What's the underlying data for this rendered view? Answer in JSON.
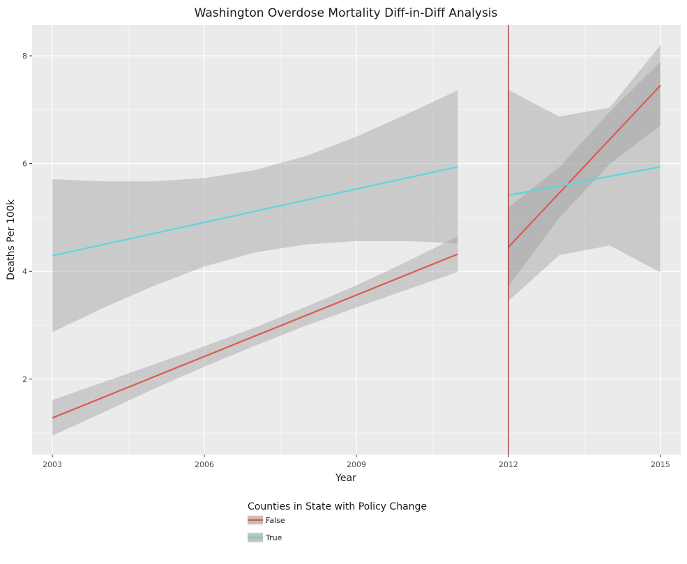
{
  "chart_data": {
    "type": "line",
    "title": "Washington Overdose Mortality Diff-in-Diff Analysis",
    "xlabel": "Year",
    "ylabel": "Deaths Per 100k",
    "xlim": [
      2002.6,
      2015.4
    ],
    "ylim": [
      0.6,
      8.57
    ],
    "x_ticks": [
      2003,
      2006,
      2009,
      2012,
      2015
    ],
    "y_ticks": [
      2,
      4,
      6,
      8
    ],
    "grid": true,
    "vline": {
      "x": 2012,
      "color": "#a00000"
    },
    "legend": {
      "title": "Counties in State with Policy Change",
      "placement": "bottom"
    },
    "series": [
      {
        "name": "False",
        "color": "#dc5a50",
        "segments": [
          {
            "x": [
              2003,
              2011
            ],
            "y": [
              1.28,
              4.32
            ],
            "band_x": [
              2003,
              2004,
              2005,
              2006,
              2007,
              2008,
              2009,
              2010,
              2011
            ],
            "band_lower": [
              0.95,
              1.38,
              1.82,
              2.23,
              2.62,
              2.99,
              3.33,
              3.66,
              3.99
            ],
            "band_upper": [
              1.61,
              1.94,
              2.27,
              2.61,
              2.96,
              3.34,
              3.74,
              4.18,
              4.65
            ]
          },
          {
            "x": [
              2012,
              2015
            ],
            "y": [
              4.45,
              7.45
            ],
            "band_x": [
              2012,
              2013,
              2014,
              2015
            ],
            "band_lower": [
              3.72,
              4.99,
              5.99,
              6.71
            ],
            "band_upper": [
              5.19,
              5.93,
              6.96,
              7.89
            ]
          }
        ]
      },
      {
        "name": "True",
        "color": "#5cd6dc",
        "segments": [
          {
            "x": [
              2003,
              2011
            ],
            "y": [
              4.29,
              5.94
            ],
            "band_x": [
              2003,
              2004,
              2005,
              2006,
              2007,
              2008,
              2009,
              2010,
              2011
            ],
            "band_lower": [
              2.87,
              3.32,
              3.73,
              4.09,
              4.35,
              4.5,
              4.56,
              4.56,
              4.52
            ],
            "band_upper": [
              5.71,
              5.67,
              5.67,
              5.73,
              5.88,
              6.14,
              6.5,
              6.92,
              7.36
            ]
          },
          {
            "x": [
              2012,
              2015
            ],
            "y": [
              5.41,
              5.94
            ],
            "band_x": [
              2012,
              2013,
              2014,
              2015
            ],
            "band_lower": [
              3.45,
              4.3,
              4.48,
              3.98
            ],
            "band_upper": [
              7.37,
              6.87,
              7.04,
              8.2
            ]
          }
        ]
      }
    ]
  }
}
